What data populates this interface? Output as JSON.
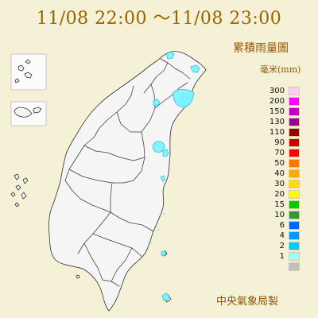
{
  "map": {
    "title": "11/08 22:00 ～11/08 23:00",
    "product_name": "累積雨量圖",
    "agency_name": "中央氣象局製"
  },
  "legend": {
    "unit": "毫米(mm)",
    "items": [
      {
        "label": "300",
        "color": "#ffc8ff"
      },
      {
        "label": "200",
        "color": "#ff00ff"
      },
      {
        "label": "150",
        "color": "#c000c0"
      },
      {
        "label": "130",
        "color": "#990099"
      },
      {
        "label": "110",
        "color": "#990000"
      },
      {
        "label": "90",
        "color": "#cc0000"
      },
      {
        "label": "70",
        "color": "#ff0000"
      },
      {
        "label": "50",
        "color": "#ff7700"
      },
      {
        "label": "40",
        "color": "#ffaa00"
      },
      {
        "label": "30",
        "color": "#ffdd00"
      },
      {
        "label": "20",
        "color": "#ffff00"
      },
      {
        "label": "15",
        "color": "#00cc00"
      },
      {
        "label": "10",
        "color": "#339933"
      },
      {
        "label": "6",
        "color": "#0066ff"
      },
      {
        "label": "4",
        "color": "#0099ff"
      },
      {
        "label": "2",
        "color": "#00ccff"
      },
      {
        "label": "1",
        "color": "#99ffff"
      },
      {
        "label": "",
        "color": "#c0c0c0"
      }
    ]
  }
}
